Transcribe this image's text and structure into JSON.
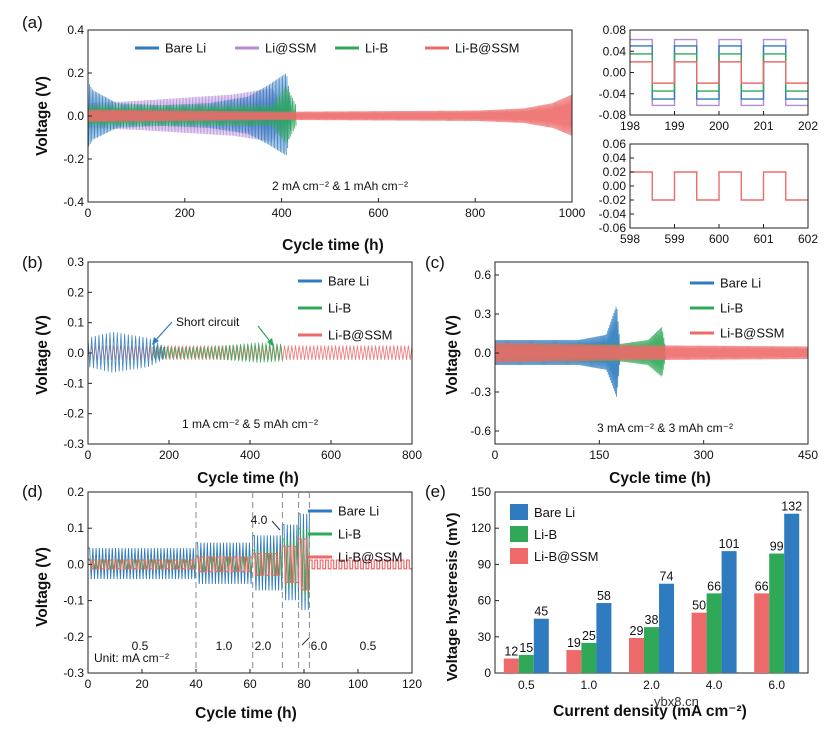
{
  "figure": {
    "watermark": "ybx8.cn",
    "series_colors": {
      "Bare Li": "#2e7bbf",
      "Li@SSM": "#b48ad8",
      "Li-B": "#2fa858",
      "Li-B@SSM": "#ee6a6a"
    }
  },
  "chart_data": [
    {
      "id": "a",
      "panel": "(a)",
      "type": "line",
      "xlabel": "Cycle time (h)",
      "ylabel": "Voltage (V)",
      "xlim": [
        0,
        1000
      ],
      "ylim": [
        -0.4,
        0.4
      ],
      "xticks": [
        "0",
        "200",
        "400",
        "600",
        "800",
        "1000"
      ],
      "yticks": [
        "-0.4",
        "-0.2",
        "0.0",
        "0.2",
        "0.4"
      ],
      "legend": [
        "Bare Li",
        "Li@SSM",
        "Li-B",
        "Li-B@SSM"
      ],
      "condition": "2 mA cm⁻² & 1 mAh cm⁻²",
      "series": [
        {
          "name": "Li@SSM",
          "color": "#b48ad8",
          "envelope": [
            [
              0,
              0.06
            ],
            [
              100,
              0.07
            ],
            [
              200,
              0.085
            ],
            [
              300,
              0.1
            ],
            [
              380,
              0.13
            ],
            [
              400,
              0.06
            ]
          ]
        },
        {
          "name": "Bare Li",
          "color": "#2e7bbf",
          "envelope": [
            [
              0,
              0.16
            ],
            [
              10,
              0.12
            ],
            [
              60,
              0.06
            ],
            [
              150,
              0.05
            ],
            [
              250,
              0.06
            ],
            [
              330,
              0.09
            ],
            [
              370,
              0.14
            ],
            [
              410,
              0.2
            ],
            [
              420,
              0.05
            ]
          ]
        },
        {
          "name": "Li-B",
          "color": "#2fa858",
          "envelope": [
            [
              0,
              0.05
            ],
            [
              150,
              0.05
            ],
            [
              380,
              0.05
            ],
            [
              410,
              0.14
            ],
            [
              430,
              0.05
            ]
          ]
        },
        {
          "name": "Li-B@SSM",
          "color": "#ee6a6a",
          "envelope": [
            [
              0,
              0.03
            ],
            [
              400,
              0.02
            ],
            [
              800,
              0.025
            ],
            [
              900,
              0.035
            ],
            [
              960,
              0.06
            ],
            [
              1000,
              0.1
            ]
          ]
        }
      ]
    },
    {
      "id": "a-inset1",
      "type": "line",
      "xlim": [
        198,
        202
      ],
      "ylim": [
        -0.08,
        0.08
      ],
      "xticks": [
        "198",
        "199",
        "200",
        "201",
        "202"
      ],
      "yticks": [
        "-0.08",
        "-0.04",
        "0.00",
        "0.04",
        "0.08"
      ],
      "series": [
        {
          "name": "Li@SSM",
          "color": "#b48ad8",
          "amplitude": 0.062
        },
        {
          "name": "Bare Li",
          "color": "#2e7bbf",
          "amplitude": 0.05
        },
        {
          "name": "Li-B",
          "color": "#2fa858",
          "amplitude": 0.035
        },
        {
          "name": "Li-B@SSM",
          "color": "#ee6a6a",
          "amplitude": 0.02
        }
      ]
    },
    {
      "id": "a-inset2",
      "type": "line",
      "xlim": [
        598,
        602
      ],
      "ylim": [
        -0.06,
        0.06
      ],
      "xticks": [
        "598",
        "599",
        "600",
        "601",
        "602"
      ],
      "yticks": [
        "-0.06",
        "-0.04",
        "-0.02",
        "0.00",
        "0.02",
        "0.04",
        "0.06"
      ],
      "series": [
        {
          "name": "Li-B@SSM",
          "color": "#ee6a6a",
          "amplitude": 0.02
        }
      ]
    },
    {
      "id": "b",
      "panel": "(b)",
      "type": "line",
      "xlabel": "Cycle time (h)",
      "ylabel": "Voltage (V)",
      "xlim": [
        0,
        800
      ],
      "ylim": [
        -0.3,
        0.3
      ],
      "xticks": [
        "0",
        "200",
        "400",
        "600",
        "800"
      ],
      "yticks": [
        "-0.3",
        "-0.2",
        "-0.1",
        "0.0",
        "0.1",
        "0.2",
        "0.3"
      ],
      "legend": [
        "Bare Li",
        "Li-B",
        "Li-B@SSM"
      ],
      "condition": "1 mA cm⁻² & 5 mAh cm⁻²",
      "annotation": "Short circuit",
      "series": [
        {
          "name": "Li-B@SSM",
          "color": "#ee6a6a",
          "envelope": [
            [
              0,
              0.025
            ],
            [
              800,
              0.025
            ]
          ]
        },
        {
          "name": "Li-B",
          "color": "#2fa858",
          "envelope": [
            [
              160,
              0.02
            ],
            [
              300,
              0.02
            ],
            [
              420,
              0.035
            ],
            [
              480,
              0.03
            ]
          ]
        },
        {
          "name": "Bare Li",
          "color": "#2e7bbf",
          "envelope": [
            [
              0,
              0.05
            ],
            [
              60,
              0.07
            ],
            [
              150,
              0.05
            ],
            [
              190,
              0.02
            ]
          ]
        }
      ]
    },
    {
      "id": "c",
      "panel": "(c)",
      "type": "line",
      "xlabel": "Cycle time (h)",
      "ylabel": "Voltage (V)",
      "xlim": [
        0,
        450
      ],
      "ylim": [
        -0.7,
        0.7
      ],
      "xticks": [
        "0",
        "150",
        "300",
        "450"
      ],
      "yticks": [
        "-0.6",
        "-0.3",
        "0.0",
        "0.3",
        "0.6"
      ],
      "legend": [
        "Bare Li",
        "Li-B",
        "Li-B@SSM"
      ],
      "condition": "3 mA cm⁻² & 3 mAh cm⁻²",
      "series": [
        {
          "name": "Bare Li",
          "color": "#2e7bbf",
          "envelope": [
            [
              0,
              0.1
            ],
            [
              120,
              0.1
            ],
            [
              160,
              0.14
            ],
            [
              175,
              0.37
            ],
            [
              180,
              0.05
            ]
          ]
        },
        {
          "name": "Li-B",
          "color": "#2fa858",
          "envelope": [
            [
              0,
              0.07
            ],
            [
              180,
              0.07
            ],
            [
              220,
              0.1
            ],
            [
              240,
              0.2
            ],
            [
              245,
              0.05
            ]
          ]
        },
        {
          "name": "Li-B@SSM",
          "color": "#ee6a6a",
          "envelope": [
            [
              0,
              0.08
            ],
            [
              200,
              0.06
            ],
            [
              450,
              0.05
            ]
          ]
        }
      ]
    },
    {
      "id": "d",
      "panel": "(d)",
      "type": "line",
      "xlabel": "Cycle time (h)",
      "ylabel": "Voltage (V)",
      "xlim": [
        0,
        120
      ],
      "ylim": [
        -0.3,
        0.2
      ],
      "xticks": [
        "0",
        "20",
        "40",
        "60",
        "80",
        "100",
        "120"
      ],
      "yticks": [
        "-0.3",
        "-0.2",
        "-0.1",
        "0.0",
        "0.1",
        "0.2"
      ],
      "legend": [
        "Bare Li",
        "Li-B",
        "Li-B@SSM"
      ],
      "current_labels": [
        "0.5",
        "1.0",
        "2.0",
        "4.0",
        "6.0",
        "0.5"
      ],
      "unit": "Unit: mA cm⁻²",
      "dividers": [
        40,
        61,
        72,
        78,
        82
      ],
      "series": [
        {
          "name": "Bare Li",
          "color": "#2e7bbf",
          "segment_amplitudes": [
            0.045,
            0.06,
            0.08,
            0.11,
            0.14
          ]
        },
        {
          "name": "Li-B",
          "color": "#2fa858",
          "segment_amplitudes": [
            0.015,
            0.025,
            0.04,
            0.07,
            0.1
          ]
        },
        {
          "name": "Li-B@SSM",
          "color": "#ee6a6a",
          "segment_amplitudes": [
            0.012,
            0.02,
            0.03,
            0.05,
            0.07,
            0.012
          ]
        }
      ]
    },
    {
      "id": "e",
      "panel": "(e)",
      "type": "bar",
      "xlabel": "Current density (mA cm⁻²)",
      "ylabel": "Voltage hysteresis (mV)",
      "ylim": [
        0,
        150
      ],
      "yticks": [
        "0",
        "30",
        "60",
        "90",
        "120",
        "150"
      ],
      "categories": [
        "0.5",
        "1.0",
        "2.0",
        "4.0",
        "6.0"
      ],
      "legend": [
        "Bare Li",
        "Li-B",
        "Li-B@SSM"
      ],
      "series": [
        {
          "name": "Li-B@SSM",
          "color": "#ee6a6a",
          "values": [
            12,
            19,
            29,
            50,
            66
          ]
        },
        {
          "name": "Li-B",
          "color": "#2fa858",
          "values": [
            15,
            25,
            38,
            66,
            99
          ]
        },
        {
          "name": "Bare Li",
          "color": "#2e7bbf",
          "values": [
            45,
            58,
            74,
            101,
            132
          ]
        }
      ]
    }
  ]
}
